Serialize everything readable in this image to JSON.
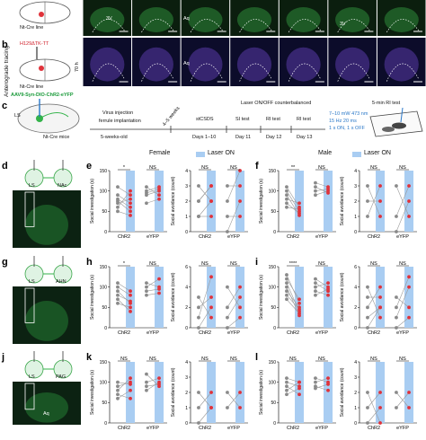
{
  "panel_letters": {
    "b": "b",
    "c": "c",
    "d": "d",
    "e": "e",
    "f": "f",
    "g": "g",
    "h": "h",
    "i": "i",
    "j": "j",
    "k": "k",
    "l": "l"
  },
  "tracing": {
    "side_label": "Anterograde tracing",
    "nt_cre_top": "Nt-Cre line",
    "construct": "H129ΔTK-TT",
    "nt_cre_bottom": "Nt-Cre line",
    "time_label": "70 h",
    "region_labels_top": [
      "3V",
      "Aq",
      "3V"
    ],
    "region_labels_bottom": [
      "Aq"
    ]
  },
  "protocol": {
    "virus": "AAV9-Syn-DIO-ChR2-eYFP",
    "ls": "LS",
    "mice": "Nt-Cre mice",
    "laser_header": "Laser ON/OFF counterbalanced",
    "rit_title": "5-min RI test",
    "step_virus": "Virus injection",
    "step_ferrule": "ferrule implantation",
    "weeks": "4–5 weeks",
    "stcsds": "stCSDS",
    "si_test": "SI test",
    "ri_test1": "RI test",
    "ri_test2": "RI test",
    "age": "5-weeks-old",
    "days_csds": "Days 1–10",
    "day11": "Day 11",
    "day12": "Day 12",
    "day13": "Day 13",
    "laser_params": [
      "7–10 mW 473 nm",
      "15 Hz 20 ms",
      "1 s ON, 1 s OFF"
    ]
  },
  "sex": {
    "female": "Female",
    "male": "Male"
  },
  "legend": {
    "laser_on": "Laser ON"
  },
  "axis": {
    "si": "Social investigation (s)",
    "sa": "Social avoidance (count)",
    "chr2": "ChR2",
    "eyfp": "eYFP"
  },
  "schematics": {
    "d": {
      "left": "LS",
      "right": "NAc"
    },
    "g": {
      "left": "LS",
      "right": "AHN"
    },
    "j": {
      "left": "LS",
      "right": "PAG",
      "region": "Aq"
    }
  },
  "colors": {
    "laser": "#a9cdf2",
    "red": "#e0323a",
    "grey": "#8a8a8a",
    "green": "#33b34a"
  },
  "chart_data": [
    {
      "id": "e-si",
      "type": "scatter",
      "ylabel": "Social investigation (s)",
      "ylim": [
        0,
        150
      ],
      "ticks": [
        0,
        50,
        100,
        150
      ],
      "categories": [
        "ChR2",
        "eYFP"
      ],
      "sig": [
        "*",
        "NS"
      ],
      "pairs": [
        [
          [
            60,
            100
          ],
          [
            75,
            50
          ],
          [
            90,
            70
          ],
          [
            50,
            40
          ],
          [
            110,
            90
          ],
          [
            80,
            60
          ],
          [
            70,
            80
          ]
        ],
        [
          [
            100,
            110
          ],
          [
            90,
            100
          ],
          [
            110,
            90
          ],
          [
            70,
            80
          ],
          [
            95,
            105
          ]
        ]
      ]
    },
    {
      "id": "e-sa",
      "type": "scatter",
      "ylabel": "Social avoidance (count)",
      "ylim": [
        0,
        4
      ],
      "ticks": [
        0,
        1,
        2,
        3,
        4
      ],
      "categories": [
        "ChR2",
        "eYFP"
      ],
      "sig": [
        "NS",
        "NS"
      ],
      "pairs": [
        [
          [
            1,
            2
          ],
          [
            2,
            3
          ],
          [
            3,
            2
          ],
          [
            1,
            1
          ],
          [
            2,
            3
          ]
        ],
        [
          [
            0,
            2
          ],
          [
            3,
            3
          ],
          [
            2,
            4
          ],
          [
            1,
            1
          ]
        ]
      ]
    },
    {
      "id": "f-si",
      "type": "scatter",
      "ylabel": "Social investigation (s)",
      "ylim": [
        0,
        150
      ],
      "ticks": [
        0,
        50,
        100,
        150
      ],
      "categories": [
        "ChR2",
        "eYFP"
      ],
      "sig": [
        "**",
        "NS"
      ],
      "pairs": [
        [
          [
            110,
            60
          ],
          [
            90,
            40
          ],
          [
            80,
            70
          ],
          [
            100,
            50
          ],
          [
            70,
            45
          ],
          [
            60,
            55
          ]
        ],
        [
          [
            120,
            110
          ],
          [
            90,
            100
          ],
          [
            110,
            95
          ],
          [
            100,
            105
          ]
        ]
      ]
    },
    {
      "id": "f-sa",
      "type": "scatter",
      "ylabel": "Social avoidance (count)",
      "ylim": [
        0,
        4
      ],
      "ticks": [
        0,
        1,
        2,
        3,
        4
      ],
      "categories": [
        "ChR2",
        "eYFP"
      ],
      "sig": [
        "NS",
        "NS"
      ],
      "pairs": [
        [
          [
            1,
            3
          ],
          [
            2,
            2
          ],
          [
            3,
            1
          ]
        ],
        [
          [
            0,
            2
          ],
          [
            3,
            1
          ],
          [
            1,
            3
          ]
        ]
      ]
    },
    {
      "id": "h-si",
      "type": "scatter",
      "ylabel": "Social investigation (s)",
      "ylim": [
        0,
        150
      ],
      "ticks": [
        0,
        50,
        100,
        150
      ],
      "categories": [
        "ChR2",
        "eYFP"
      ],
      "sig": [
        "*",
        "NS"
      ],
      "pairs": [
        [
          [
            100,
            80
          ],
          [
            90,
            60
          ],
          [
            70,
            40
          ],
          [
            60,
            50
          ],
          [
            110,
            90
          ],
          [
            80,
            65
          ]
        ],
        [
          [
            110,
            100
          ],
          [
            90,
            95
          ],
          [
            100,
            120
          ],
          [
            80,
            85
          ]
        ]
      ]
    },
    {
      "id": "h-sa",
      "type": "scatter",
      "ylabel": "Social avoidance (count)",
      "ylim": [
        0,
        6
      ],
      "ticks": [
        0,
        2,
        4,
        6
      ],
      "categories": [
        "ChR2",
        "eYFP"
      ],
      "sig": [
        "NS",
        "NS"
      ],
      "pairs": [
        [
          [
            1,
            5
          ],
          [
            2,
            3
          ],
          [
            3,
            1
          ],
          [
            0,
            2
          ]
        ],
        [
          [
            1,
            3
          ],
          [
            4,
            2
          ],
          [
            2,
            4
          ],
          [
            0,
            1
          ]
        ]
      ]
    },
    {
      "id": "i-si",
      "type": "scatter",
      "ylabel": "Social investigation (s)",
      "ylim": [
        0,
        150
      ],
      "ticks": [
        0,
        50,
        100,
        150
      ],
      "categories": [
        "ChR2",
        "eYFP"
      ],
      "sig": [
        "****",
        "NS"
      ],
      "pairs": [
        [
          [
            130,
            60
          ],
          [
            110,
            40
          ],
          [
            100,
            30
          ],
          [
            90,
            50
          ],
          [
            120,
            70
          ],
          [
            80,
            45
          ],
          [
            70,
            35
          ]
        ],
        [
          [
            110,
            90
          ],
          [
            100,
            110
          ],
          [
            90,
            80
          ],
          [
            80,
            95
          ],
          [
            120,
            100
          ]
        ]
      ]
    },
    {
      "id": "i-sa",
      "type": "scatter",
      "ylabel": "Social avoidance (count)",
      "ylim": [
        0,
        6
      ],
      "ticks": [
        0,
        2,
        4,
        6
      ],
      "categories": [
        "ChR2",
        "eYFP"
      ],
      "sig": [
        "NS",
        "NS"
      ],
      "pairs": [
        [
          [
            2,
            4
          ],
          [
            3,
            3
          ],
          [
            1,
            2
          ],
          [
            4,
            1
          ],
          [
            0,
            2
          ]
        ],
        [
          [
            1,
            4
          ],
          [
            3,
            2
          ],
          [
            2,
            5
          ],
          [
            0,
            1
          ]
        ]
      ]
    },
    {
      "id": "k-si",
      "type": "scatter",
      "ylabel": "Social investigation (s)",
      "ylim": [
        0,
        150
      ],
      "ticks": [
        0,
        50,
        100,
        150
      ],
      "categories": [
        "ChR2",
        "eYFP"
      ],
      "sig": [
        "NS",
        "NS"
      ],
      "pairs": [
        [
          [
            90,
            100
          ],
          [
            80,
            110
          ],
          [
            70,
            60
          ],
          [
            100,
            95
          ],
          [
            60,
            80
          ]
        ],
        [
          [
            100,
            110
          ],
          [
            120,
            90
          ],
          [
            80,
            100
          ],
          [
            90,
            95
          ]
        ]
      ]
    },
    {
      "id": "k-sa",
      "type": "scatter",
      "ylabel": "Social avoidance (count)",
      "ylim": [
        0,
        4
      ],
      "ticks": [
        0,
        1,
        2,
        3,
        4
      ],
      "categories": [
        "ChR2",
        "eYFP"
      ],
      "sig": [
        "NS",
        "NS"
      ],
      "pairs": [
        [
          [
            1,
            2
          ],
          [
            2,
            1
          ],
          [
            0,
            1
          ]
        ],
        [
          [
            1,
            2
          ],
          [
            2,
            1
          ]
        ]
      ]
    },
    {
      "id": "l-si",
      "type": "scatter",
      "ylabel": "Social investigation (s)",
      "ylim": [
        0,
        150
      ],
      "ticks": [
        0,
        50,
        100,
        150
      ],
      "categories": [
        "ChR2",
        "eYFP"
      ],
      "sig": [
        "NS",
        "NS"
      ],
      "pairs": [
        [
          [
            100,
            90
          ],
          [
            80,
            100
          ],
          [
            90,
            70
          ],
          [
            110,
            100
          ],
          [
            70,
            85
          ]
        ],
        [
          [
            100,
            110
          ],
          [
            90,
            80
          ],
          [
            110,
            100
          ],
          [
            85,
            95
          ]
        ]
      ]
    },
    {
      "id": "l-sa",
      "type": "scatter",
      "ylabel": "Social avoidance (count)",
      "ylim": [
        0,
        4
      ],
      "ticks": [
        0,
        1,
        2,
        3,
        4
      ],
      "categories": [
        "ChR2",
        "eYFP"
      ],
      "sig": [
        "NS",
        "NS"
      ],
      "pairs": [
        [
          [
            1,
            2
          ],
          [
            2,
            0
          ],
          [
            0,
            1
          ]
        ],
        [
          [
            2,
            1
          ],
          [
            1,
            2
          ]
        ]
      ]
    }
  ]
}
